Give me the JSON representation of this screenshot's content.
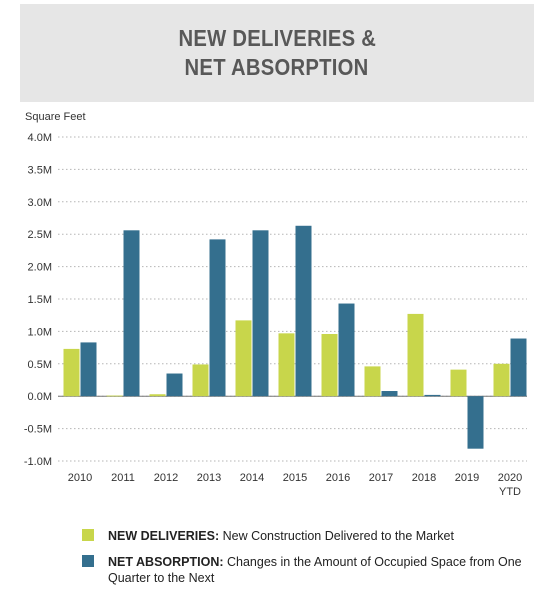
{
  "header": {
    "line1": "NEW DELIVERIES &",
    "line2": "NET ABSORPTION"
  },
  "colors": {
    "deliveries": "#c8d64b",
    "absorption": "#346f8e",
    "grid": "#b5b5b5",
    "header_bg": "#e6e6e6"
  },
  "chart_data": {
    "type": "bar",
    "ylabel": "Square Feet",
    "ylim": [
      -1.0,
      4.0
    ],
    "yticks": [
      "4.0M",
      "3.5M",
      "3.0M",
      "2.5M",
      "2.0M",
      "1.5M",
      "1.0M",
      "0.5M",
      "0.0M",
      "-0.5M",
      "-1.0M"
    ],
    "ytick_values": [
      4.0,
      3.5,
      3.0,
      2.5,
      2.0,
      1.5,
      1.0,
      0.5,
      0.0,
      -0.5,
      -1.0
    ],
    "categories": [
      "2010",
      "2011",
      "2012",
      "2013",
      "2014",
      "2015",
      "2016",
      "2017",
      "2018",
      "2019",
      "2020"
    ],
    "category_sublabels": [
      "",
      "",
      "",
      "",
      "",
      "",
      "",
      "",
      "",
      "",
      "YTD"
    ],
    "grid": "horizontal dotted",
    "series": [
      {
        "name": "NEW DELIVERIES",
        "values": [
          0.73,
          0.01,
          0.03,
          0.49,
          1.17,
          0.97,
          0.96,
          0.46,
          1.27,
          0.41,
          0.5
        ]
      },
      {
        "name": "NET ABSORPTION",
        "values": [
          0.83,
          2.56,
          0.35,
          2.42,
          2.56,
          2.63,
          1.43,
          0.08,
          0.02,
          -0.81,
          0.89
        ]
      }
    ]
  },
  "legend": {
    "items": [
      {
        "title": "NEW DELIVERIES:",
        "desc": "New Construction Delivered to the Market"
      },
      {
        "title": "NET ABSORPTION:",
        "desc": "Changes in the Amount of Occupied Space from One Quarter to the Next"
      }
    ]
  }
}
